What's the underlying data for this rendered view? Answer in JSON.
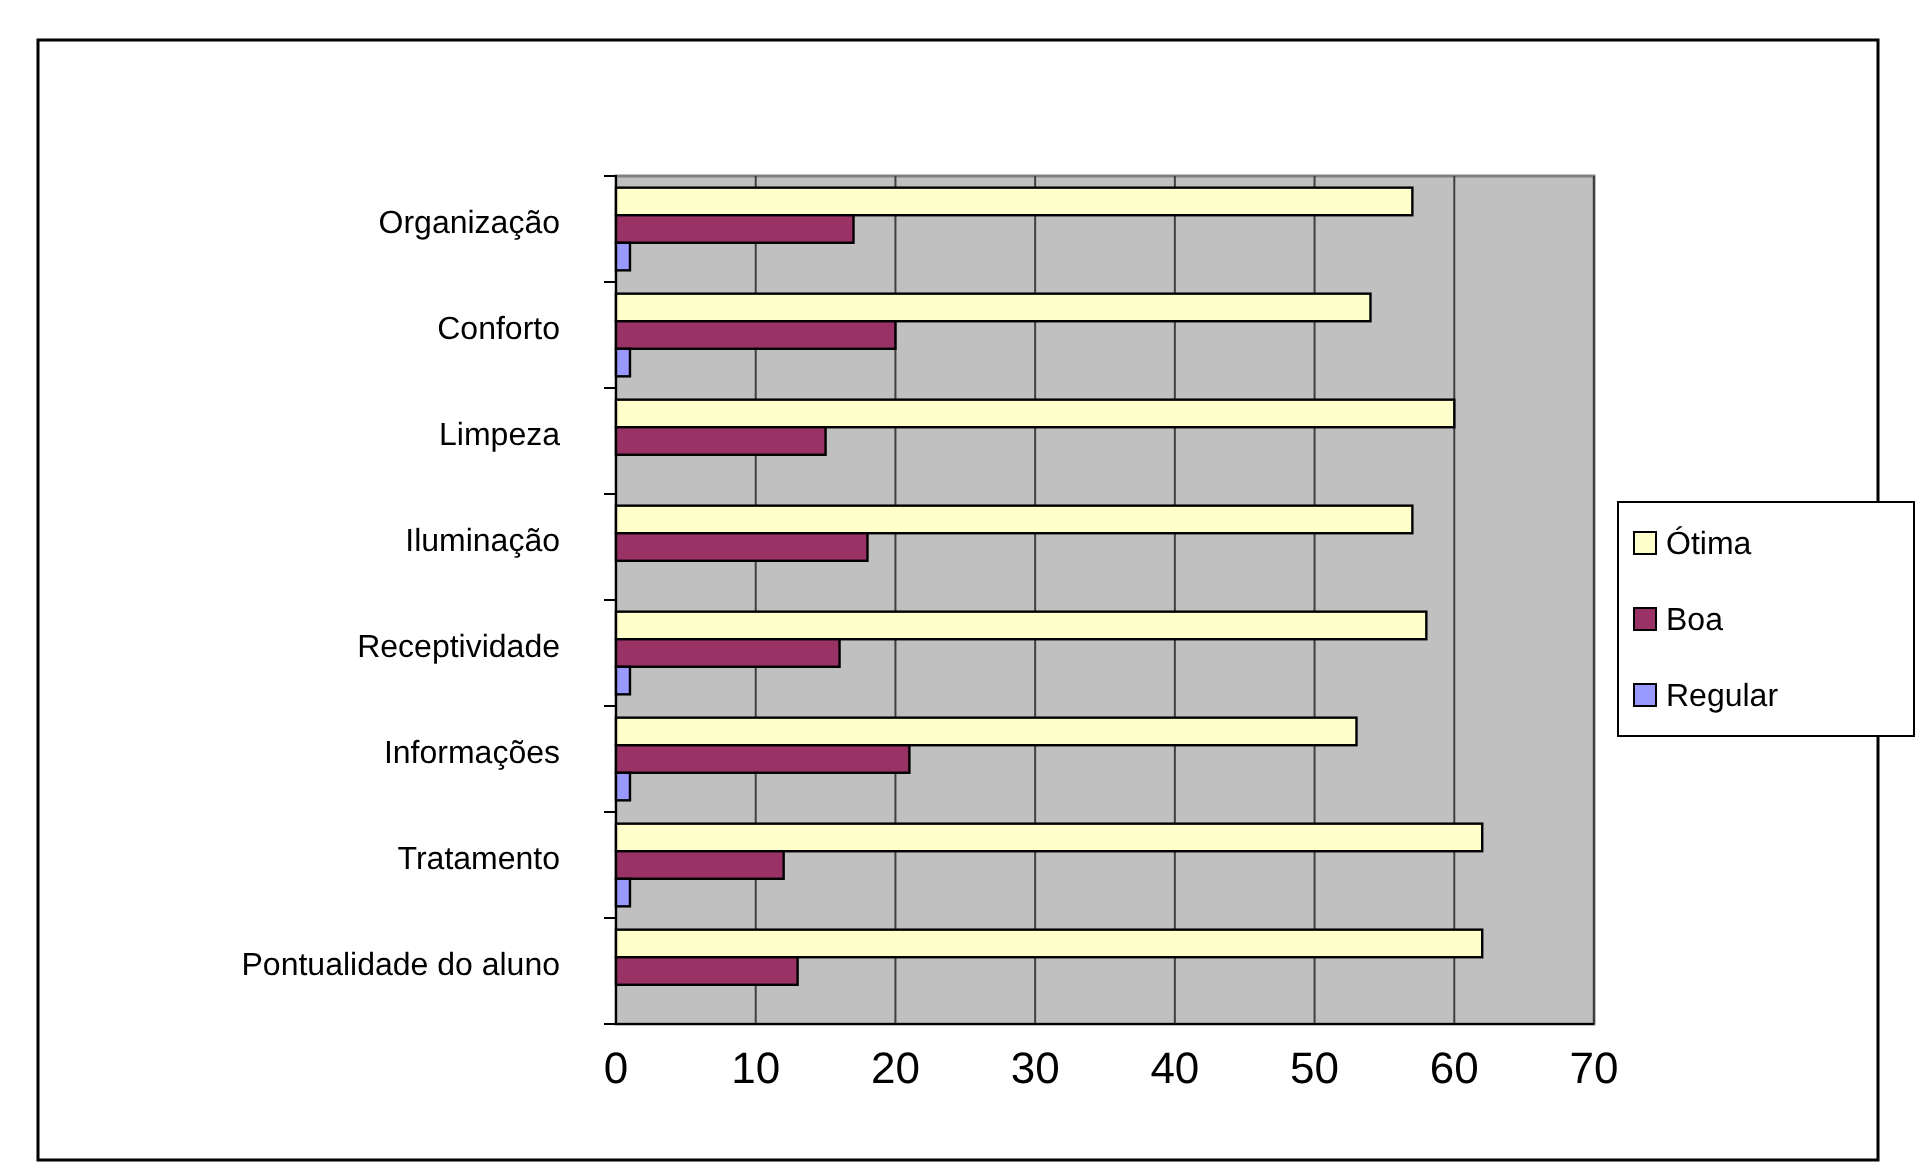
{
  "chart_data": {
    "type": "bar",
    "orientation": "horizontal",
    "categories": [
      "Organização",
      "Conforto",
      "Limpeza",
      "Iluminação",
      "Receptividade",
      "Informações",
      "Tratamento",
      "Pontualidade do aluno"
    ],
    "series": [
      {
        "name": "Ótima",
        "color": "#ffffcc",
        "values": [
          57,
          54,
          60,
          57,
          58,
          53,
          62,
          62
        ]
      },
      {
        "name": "Boa",
        "color": "#993366",
        "values": [
          17,
          20,
          15,
          18,
          16,
          21,
          12,
          13
        ]
      },
      {
        "name": "Regular",
        "color": "#9999ff",
        "values": [
          1,
          1,
          null,
          null,
          1,
          1,
          1,
          null
        ]
      }
    ],
    "xlim": [
      0,
      70
    ],
    "xticks": [
      0,
      10,
      20,
      30,
      40,
      50,
      60,
      70
    ],
    "grid": "x",
    "legend": "right"
  }
}
